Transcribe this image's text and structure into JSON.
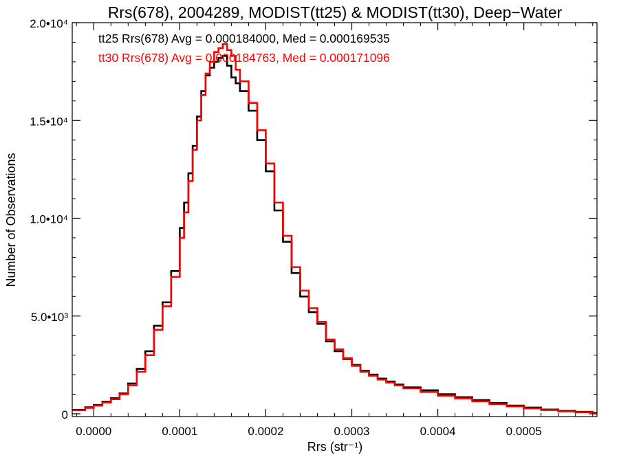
{
  "chart_data": {
    "type": "line",
    "title": "Rrs(678), 2004289, MODIST(tt25) & MODIST(tt30), Deep−Water",
    "xlabel": "Rrs (str⁻¹)",
    "ylabel": "Number of Observations",
    "xlim": [
      -2.5e-05,
      0.000585
    ],
    "ylim": [
      0,
      20000
    ],
    "x_ticks": [
      {
        "value": 0.0,
        "label": "0.0000"
      },
      {
        "value": 0.0001,
        "label": "0.0001"
      },
      {
        "value": 0.0002,
        "label": "0.0002"
      },
      {
        "value": 0.0003,
        "label": "0.0003"
      },
      {
        "value": 0.0004,
        "label": "0.0004"
      },
      {
        "value": 0.0005,
        "label": "0.0005"
      }
    ],
    "y_ticks": [
      {
        "value": 0,
        "label": "0"
      },
      {
        "value": 5000,
        "label": "5.0•10³"
      },
      {
        "value": 10000,
        "label": "1.0•10⁴"
      },
      {
        "value": 15000,
        "label": "1.5•10⁴"
      },
      {
        "value": 20000,
        "label": "2.0•10⁴"
      }
    ],
    "grid": false,
    "step": true,
    "annotations": [
      {
        "text": "tt25 Rrs(678) Avg = 0.000184000, Med = 0.000169535",
        "color": "#000000"
      },
      {
        "text": "tt30 Rrs(678) Avg = 0.000184763, Med = 0.000171096",
        "color": "#ff0000"
      }
    ],
    "series": [
      {
        "color": "#000000",
        "x": [
          -2.5e-05,
          -1e-05,
          0.0,
          1e-05,
          2e-05,
          3e-05,
          4e-05,
          5e-05,
          6e-05,
          7e-05,
          8e-05,
          9e-05,
          0.0001,
          0.000105,
          0.00011,
          0.000115,
          0.00012,
          0.000125,
          0.00013,
          0.000135,
          0.00014,
          0.000145,
          0.00015,
          0.000155,
          0.00016,
          0.000165,
          0.00017,
          0.00018,
          0.00019,
          0.0002,
          0.00021,
          0.00022,
          0.00023,
          0.00024,
          0.00025,
          0.00026,
          0.00027,
          0.00028,
          0.00029,
          0.0003,
          0.00031,
          0.00032,
          0.00033,
          0.00034,
          0.00035,
          0.00036,
          0.00038,
          0.0004,
          0.00042,
          0.00044,
          0.00046,
          0.00048,
          0.0005,
          0.00052,
          0.00054,
          0.00056,
          0.00058
        ],
        "y": [
          200,
          330,
          450,
          620,
          800,
          1050,
          1550,
          2300,
          3200,
          4500,
          5700,
          7300,
          9500,
          10800,
          12300,
          13700,
          15200,
          16500,
          17300,
          17700,
          18000,
          18200,
          18300,
          17800,
          17200,
          16900,
          16500,
          15500,
          14000,
          12400,
          10400,
          8800,
          7200,
          6000,
          5200,
          4600,
          3700,
          3200,
          2800,
          2500,
          2200,
          2000,
          1800,
          1650,
          1500,
          1350,
          1200,
          1000,
          850,
          700,
          550,
          420,
          320,
          220,
          150,
          100,
          60
        ]
      },
      {
        "color": "#ff0000",
        "x": [
          -2.5e-05,
          -1e-05,
          0.0,
          1e-05,
          2e-05,
          3e-05,
          4e-05,
          5e-05,
          6e-05,
          7e-05,
          8e-05,
          9e-05,
          0.0001,
          0.000105,
          0.00011,
          0.000115,
          0.00012,
          0.000125,
          0.00013,
          0.000135,
          0.00014,
          0.000145,
          0.00015,
          0.000155,
          0.00016,
          0.000165,
          0.00017,
          0.00018,
          0.00019,
          0.0002,
          0.00021,
          0.00022,
          0.00023,
          0.00024,
          0.00025,
          0.00026,
          0.00027,
          0.00028,
          0.00029,
          0.0003,
          0.00031,
          0.00032,
          0.00033,
          0.00034,
          0.00035,
          0.00036,
          0.00038,
          0.0004,
          0.00042,
          0.00044,
          0.00046,
          0.00048,
          0.0005,
          0.00052,
          0.00054,
          0.00056,
          0.00058
        ],
        "y": [
          180,
          300,
          420,
          580,
          750,
          1000,
          1450,
          2150,
          3000,
          4300,
          5500,
          7000,
          9000,
          10300,
          11900,
          13500,
          15000,
          16300,
          17400,
          18000,
          18500,
          18700,
          18900,
          18600,
          18300,
          17600,
          17000,
          15900,
          14500,
          12800,
          10800,
          9100,
          7500,
          6300,
          5400,
          4700,
          3800,
          3300,
          2850,
          2450,
          2150,
          1950,
          1750,
          1600,
          1450,
          1300,
          1120,
          930,
          790,
          640,
          500,
          380,
          280,
          190,
          120,
          80,
          40
        ]
      }
    ]
  }
}
